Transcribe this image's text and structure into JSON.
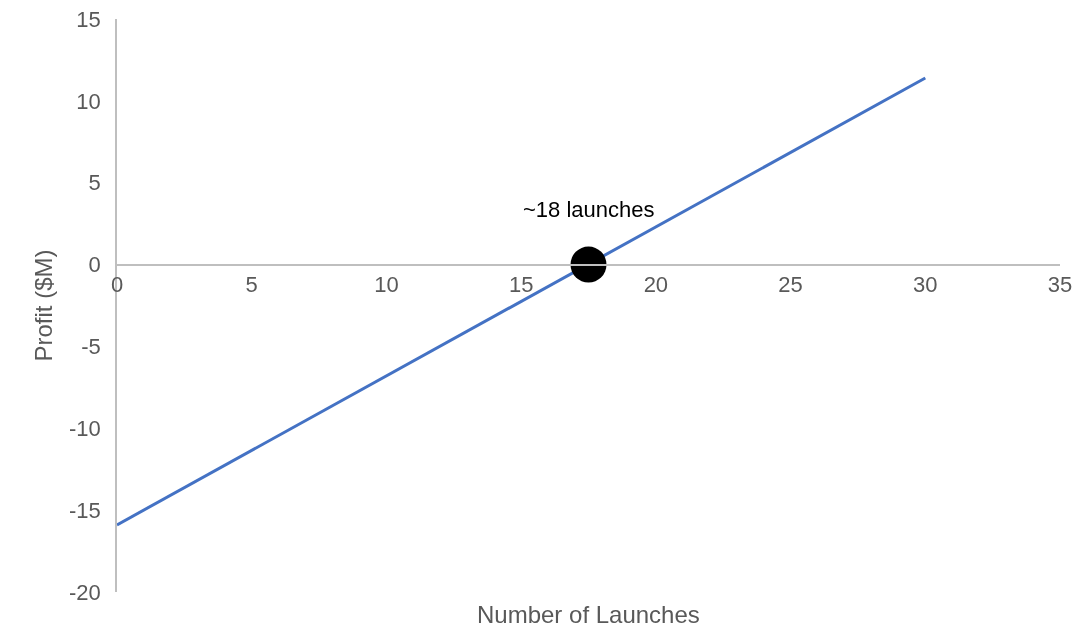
{
  "chart_data": {
    "type": "line",
    "xlabel": "Number of Launches",
    "ylabel": "Profit ($M)",
    "series": [
      {
        "color": "#4472c4",
        "x": [
          0,
          30
        ],
        "values": [
          -15.9,
          11.4
        ],
        "marker": "none"
      },
      {
        "type": "scatter",
        "color": "#000000",
        "x": [
          17.5
        ],
        "values": [
          0
        ],
        "marker": "circle"
      }
    ],
    "annotations": [
      {
        "text": "~18 launches",
        "x": 17.5,
        "y": 0
      }
    ],
    "xlim": [
      0,
      35
    ],
    "xticks": [
      0,
      5,
      10,
      15,
      20,
      25,
      30,
      35
    ],
    "ylim": [
      -20,
      15
    ],
    "yticks": [
      -20,
      -15,
      -10,
      -5,
      0,
      5,
      10,
      15
    ],
    "grid": false
  }
}
